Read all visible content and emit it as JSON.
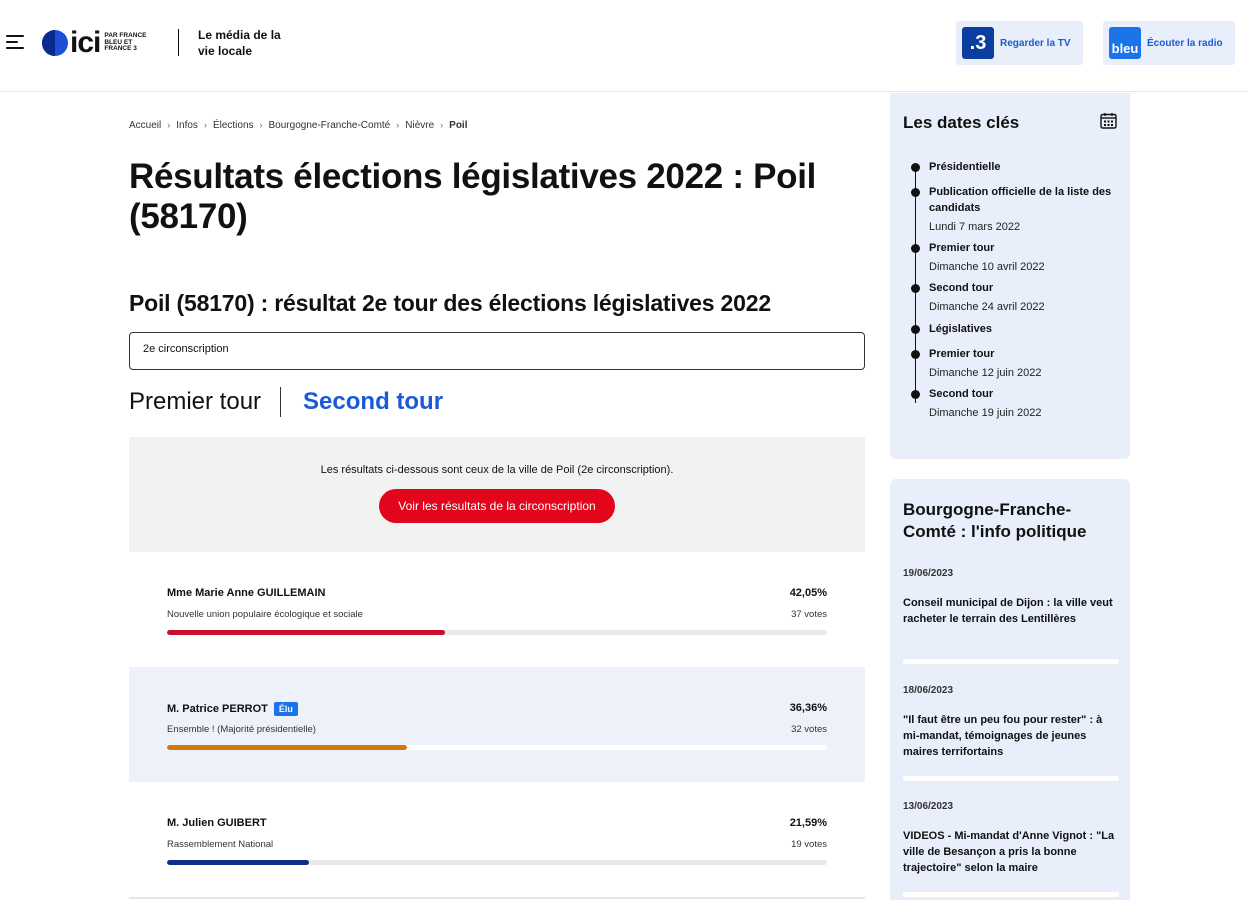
{
  "header": {
    "logo_word": "ici",
    "logo_sub": "PAR FRANCE BLEU ET FRANCE 3",
    "tagline": "Le média de la vie locale",
    "tv": {
      "icon_text": ".3",
      "label": "Regarder la TV"
    },
    "radio": {
      "icon_text": "bleu",
      "label": "Écouter la radio"
    }
  },
  "breadcrumb": [
    "Accueil",
    "Infos",
    "Élections",
    "Bourgogne-Franche-Comté",
    "Nièvre",
    "Poil"
  ],
  "page_title": "Résultats élections législatives 2022 : Poil (58170)",
  "section_title": "Poil (58170) : résultat 2e tour des élections législatives 2022",
  "circonscription_select": {
    "value": "2e circonscription"
  },
  "tabs": {
    "first": "Premier tour",
    "second": "Second tour",
    "active": "second"
  },
  "info": {
    "message": "Les résultats ci-dessous sont ceux de la ville de Poil (2e circonscription).",
    "button": "Voir les résultats de la circonscription"
  },
  "candidates": [
    {
      "name": "Mme Marie Anne GUILLEMAIN",
      "party": "Nouvelle union populaire écologique et sociale",
      "percent": "42,05%",
      "votes": "37 votes",
      "share": 42.05,
      "color": "#c8102e",
      "elected": false
    },
    {
      "name": "M. Patrice PERROT",
      "party": "Ensemble ! (Majorité présidentielle)",
      "percent": "36,36%",
      "votes": "32 votes",
      "share": 36.36,
      "color": "#d4770b",
      "elected": true,
      "elected_label": "Élu"
    },
    {
      "name": "M. Julien GUIBERT",
      "party": "Rassemblement National",
      "percent": "21,59%",
      "votes": "19 votes",
      "share": 21.59,
      "color": "#0d2f8a",
      "elected": false
    }
  ],
  "sidebar": {
    "dates_title": "Les dates clés",
    "timeline": [
      {
        "title": "Présidentielle",
        "date": ""
      },
      {
        "title": "Publication officielle de la liste des candidats",
        "date": "Lundi 7 mars 2022"
      },
      {
        "title": "Premier tour",
        "date": "Dimanche 10 avril 2022"
      },
      {
        "title": "Second tour",
        "date": "Dimanche 24 avril 2022"
      },
      {
        "title": "Législatives",
        "date": ""
      },
      {
        "title": "Premier tour",
        "date": "Dimanche 12 juin 2022"
      },
      {
        "title": "Second tour",
        "date": "Dimanche 19 juin 2022"
      }
    ],
    "politics_title": "Bourgogne-Franche-Comté : l'info politique",
    "articles": [
      {
        "date": "19/06/2023",
        "headline": "Conseil municipal de Dijon : la ville veut racheter le terrain des Lentillères"
      },
      {
        "date": "18/06/2023",
        "headline": "\"Il faut être un peu fou pour rester\" : à mi-mandat, témoignages de jeunes maires terrifortains"
      },
      {
        "date": "13/06/2023",
        "headline": "VIDEOS - Mi-mandat d'Anne Vignot : \"La ville de Besançon a pris la bonne trajectoire\" selon la maire"
      }
    ]
  }
}
